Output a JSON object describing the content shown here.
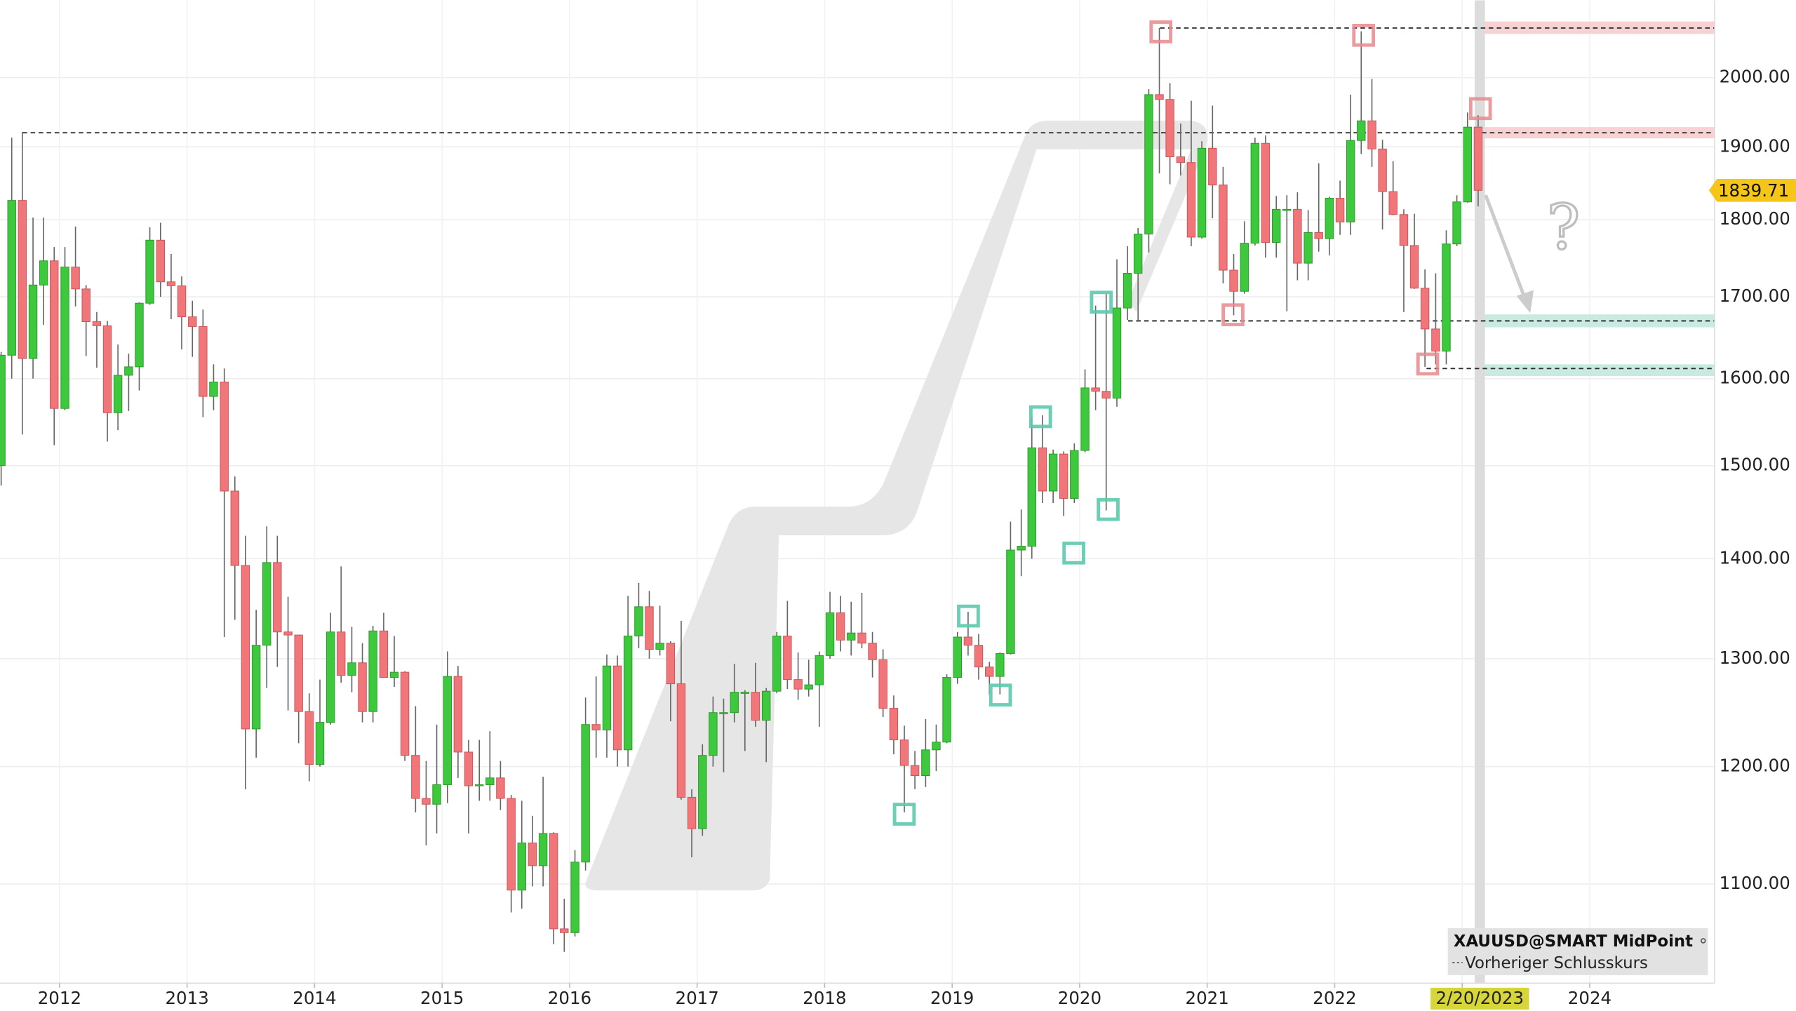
{
  "chart_data": {
    "type": "candlestick",
    "log_scale": true,
    "grid": true,
    "xlim": [
      2011.533,
      2024.98
    ],
    "ylim": [
      1022,
      2118
    ],
    "xticks": [
      2012,
      2013,
      2014,
      2015,
      2016,
      2017,
      2018,
      2019,
      2020,
      2021,
      2022,
      2023,
      2024
    ],
    "yticks": [
      {
        "value": 1100,
        "label": "1100.00"
      },
      {
        "value": 1200,
        "label": "1200.00"
      },
      {
        "value": 1300,
        "label": "1300.00"
      },
      {
        "value": 1400,
        "label": "1400.00"
      },
      {
        "value": 1500,
        "label": "1500.00"
      },
      {
        "value": 1600,
        "label": "1600.00"
      },
      {
        "value": 1700,
        "label": "1700.00"
      },
      {
        "value": 1800,
        "label": "1800.00"
      },
      {
        "value": 1900,
        "label": "1900.00"
      },
      {
        "value": 2000,
        "label": "2000.00"
      }
    ],
    "cursor": {
      "value": 2023.138,
      "label": "2/20/2023"
    },
    "last_price": 1839.71,
    "annotation": "?",
    "legend": [
      "XAUUSD@SMART MidPoint",
      "Vorheriger Schlusskurs"
    ],
    "levels": [
      {
        "value": 2075,
        "from": 2020.63
      },
      {
        "value": 1920,
        "from": 2011.71
      },
      {
        "value": 1670,
        "from": 2020.38
      },
      {
        "value": 1612,
        "from": 2022.72
      }
    ],
    "zones": [
      {
        "from": 2066,
        "to": 2085,
        "color": "#f6c9cb"
      },
      {
        "from": 1912,
        "to": 1928,
        "color": "#f6c9cb"
      },
      {
        "from": 1662,
        "to": 1678,
        "color": "#bfe6dc"
      },
      {
        "from": 1603,
        "to": 1617,
        "color": "#bfe6dc"
      }
    ],
    "up_color": "#3ec83e",
    "down_color": "#f0767a",
    "x": [
      2011.542,
      2011.625,
      2011.708,
      2011.792,
      2011.875,
      2011.958,
      2012.042,
      2012.125,
      2012.208,
      2012.292,
      2012.375,
      2012.458,
      2012.542,
      2012.625,
      2012.708,
      2012.792,
      2012.875,
      2012.958,
      2013.042,
      2013.125,
      2013.208,
      2013.292,
      2013.375,
      2013.458,
      2013.542,
      2013.625,
      2013.708,
      2013.792,
      2013.875,
      2013.958,
      2014.042,
      2014.125,
      2014.208,
      2014.292,
      2014.375,
      2014.458,
      2014.542,
      2014.625,
      2014.708,
      2014.792,
      2014.875,
      2014.958,
      2015.042,
      2015.125,
      2015.208,
      2015.292,
      2015.375,
      2015.458,
      2015.542,
      2015.625,
      2015.708,
      2015.792,
      2015.875,
      2015.958,
      2016.042,
      2016.125,
      2016.208,
      2016.292,
      2016.375,
      2016.458,
      2016.542,
      2016.625,
      2016.708,
      2016.792,
      2016.875,
      2016.958,
      2017.042,
      2017.125,
      2017.208,
      2017.292,
      2017.375,
      2017.458,
      2017.542,
      2017.625,
      2017.708,
      2017.792,
      2017.875,
      2017.958,
      2018.042,
      2018.125,
      2018.208,
      2018.292,
      2018.375,
      2018.458,
      2018.542,
      2018.625,
      2018.708,
      2018.792,
      2018.875,
      2018.958,
      2019.042,
      2019.125,
      2019.208,
      2019.292,
      2019.375,
      2019.458,
      2019.542,
      2019.625,
      2019.708,
      2019.792,
      2019.875,
      2019.958,
      2020.042,
      2020.125,
      2020.208,
      2020.292,
      2020.375,
      2020.458,
      2020.542,
      2020.625,
      2020.708,
      2020.792,
      2020.875,
      2020.958,
      2021.042,
      2021.125,
      2021.208,
      2021.292,
      2021.375,
      2021.458,
      2021.542,
      2021.625,
      2021.708,
      2021.792,
      2021.875,
      2021.958,
      2022.042,
      2022.125,
      2022.208,
      2022.292,
      2022.375,
      2022.458,
      2022.542,
      2022.625,
      2022.708,
      2022.792,
      2022.875,
      2022.958,
      2023.042,
      2023.125
    ],
    "series": [
      {
        "name": "XAUUSD@SMART MidPoint",
        "open": [
          1500,
          1628,
          1826,
          1624,
          1715,
          1746,
          1565,
          1738,
          1710,
          1669,
          1664,
          1560,
          1604,
          1614,
          1692,
          1773,
          1719,
          1714,
          1675,
          1663,
          1579,
          1596,
          1472,
          1393,
          1234,
          1313,
          1396,
          1326,
          1323,
          1250,
          1202,
          1240,
          1326,
          1284,
          1296,
          1250,
          1327,
          1282,
          1287,
          1210,
          1172,
          1167,
          1184,
          1283,
          1213,
          1183,
          1184,
          1190,
          1172,
          1095,
          1134,
          1115,
          1142,
          1064,
          1061,
          1118,
          1238,
          1233,
          1293,
          1215,
          1322,
          1351,
          1309,
          1315,
          1276,
          1173,
          1146,
          1210,
          1249,
          1249,
          1268,
          1268,
          1242,
          1269,
          1322,
          1280,
          1271,
          1275,
          1303,
          1345,
          1318,
          1325,
          1315,
          1299,
          1253,
          1224,
          1201,
          1192,
          1215,
          1222,
          1282,
          1321,
          1313,
          1292,
          1283,
          1305,
          1409,
          1413,
          1520,
          1472,
          1513,
          1464,
          1517,
          1589,
          1585,
          1577,
          1686,
          1730,
          1781,
          1975,
          1968,
          1886,
          1878,
          1777,
          1898,
          1847,
          1734,
          1707,
          1769,
          1905,
          1770,
          1814,
          1814,
          1743,
          1783,
          1775,
          1829,
          1797,
          1909,
          1937,
          1897,
          1838,
          1807,
          1766,
          1711,
          1660,
          1633,
          1768,
          1824,
          1928
        ],
        "high": [
          1632,
          1913,
          1921,
          1803,
          1803,
          1764,
          1764,
          1791,
          1715,
          1681,
          1670,
          1641,
          1630,
          1693,
          1790,
          1796,
          1755,
          1726,
          1695,
          1684,
          1617,
          1612,
          1488,
          1424,
          1348,
          1434,
          1424,
          1361,
          1323,
          1267,
          1280,
          1345,
          1392,
          1331,
          1315,
          1332,
          1345,
          1322,
          1288,
          1255,
          1205,
          1238,
          1307,
          1293,
          1224,
          1224,
          1232,
          1205,
          1175,
          1170,
          1157,
          1191,
          1143,
          1088,
          1128,
          1263,
          1283,
          1304,
          1303,
          1362,
          1375,
          1367,
          1352,
          1317,
          1337,
          1180,
          1220,
          1264,
          1262,
          1295,
          1270,
          1296,
          1272,
          1326,
          1357,
          1306,
          1299,
          1307,
          1366,
          1362,
          1356,
          1365,
          1326,
          1309,
          1265,
          1237,
          1214,
          1243,
          1238,
          1285,
          1326,
          1346,
          1324,
          1297,
          1306,
          1439,
          1452,
          1555,
          1557,
          1518,
          1516,
          1525,
          1611,
          1689,
          1704,
          1748,
          1765,
          1789,
          1983,
          2075,
          1992,
          1933,
          1966,
          1908,
          1959,
          1872,
          1755,
          1798,
          1913,
          1916,
          1832,
          1833,
          1837,
          1813,
          1877,
          1831,
          1853,
          1975,
          2070,
          1998,
          1910,
          1880,
          1814,
          1808,
          1735,
          1730,
          1786,
          1833,
          1949,
          1945
        ],
        "low": [
          1478,
          1600,
          1535,
          1600,
          1665,
          1523,
          1563,
          1688,
          1627,
          1613,
          1527,
          1540,
          1562,
          1586,
          1690,
          1700,
          1672,
          1635,
          1626,
          1555,
          1563,
          1321,
          1338,
          1180,
          1208,
          1272,
          1292,
          1251,
          1221,
          1187,
          1200,
          1238,
          1277,
          1268,
          1240,
          1240,
          1282,
          1273,
          1205,
          1160,
          1132,
          1142,
          1168,
          1190,
          1142,
          1170,
          1170,
          1162,
          1077,
          1080,
          1098,
          1098,
          1052,
          1046,
          1058,
          1111,
          1208,
          1208,
          1200,
          1200,
          1310,
          1300,
          1303,
          1241,
          1171,
          1122,
          1140,
          1200,
          1195,
          1240,
          1214,
          1236,
          1204,
          1267,
          1271,
          1261,
          1264,
          1236,
          1300,
          1307,
          1303,
          1310,
          1282,
          1245,
          1211,
          1160,
          1180,
          1182,
          1196,
          1221,
          1276,
          1303,
          1280,
          1266,
          1266,
          1304,
          1382,
          1400,
          1459,
          1459,
          1445,
          1459,
          1515,
          1563,
          1451,
          1567,
          1671,
          1671,
          1757,
          1863,
          1848,
          1860,
          1765,
          1775,
          1802,
          1717,
          1677,
          1704,
          1766,
          1750,
          1750,
          1682,
          1721,
          1721,
          1758,
          1753,
          1780,
          1780,
          1890,
          1872,
          1787,
          1806,
          1681,
          1710,
          1614,
          1617,
          1617,
          1765,
          1823,
          1818
        ],
        "close": [
          1628,
          1826,
          1624,
          1715,
          1746,
          1565,
          1738,
          1710,
          1669,
          1664,
          1560,
          1604,
          1614,
          1692,
          1773,
          1719,
          1714,
          1675,
          1663,
          1579,
          1596,
          1472,
          1393,
          1234,
          1313,
          1396,
          1326,
          1323,
          1250,
          1202,
          1240,
          1326,
          1284,
          1296,
          1250,
          1327,
          1282,
          1287,
          1210,
          1172,
          1167,
          1184,
          1283,
          1213,
          1183,
          1184,
          1190,
          1172,
          1095,
          1134,
          1115,
          1142,
          1064,
          1061,
          1118,
          1238,
          1233,
          1293,
          1215,
          1322,
          1351,
          1309,
          1315,
          1276,
          1173,
          1146,
          1210,
          1249,
          1249,
          1268,
          1268,
          1242,
          1269,
          1322,
          1280,
          1271,
          1275,
          1303,
          1345,
          1318,
          1325,
          1315,
          1299,
          1253,
          1224,
          1201,
          1192,
          1215,
          1222,
          1282,
          1321,
          1313,
          1292,
          1283,
          1305,
          1409,
          1413,
          1520,
          1472,
          1513,
          1464,
          1517,
          1589,
          1585,
          1577,
          1686,
          1730,
          1781,
          1975,
          1968,
          1886,
          1878,
          1777,
          1898,
          1847,
          1734,
          1707,
          1769,
          1905,
          1770,
          1814,
          1814,
          1743,
          1783,
          1775,
          1829,
          1797,
          1909,
          1937,
          1897,
          1838,
          1807,
          1766,
          1711,
          1660,
          1633,
          1768,
          1824,
          1928,
          1839.71
        ]
      }
    ]
  }
}
